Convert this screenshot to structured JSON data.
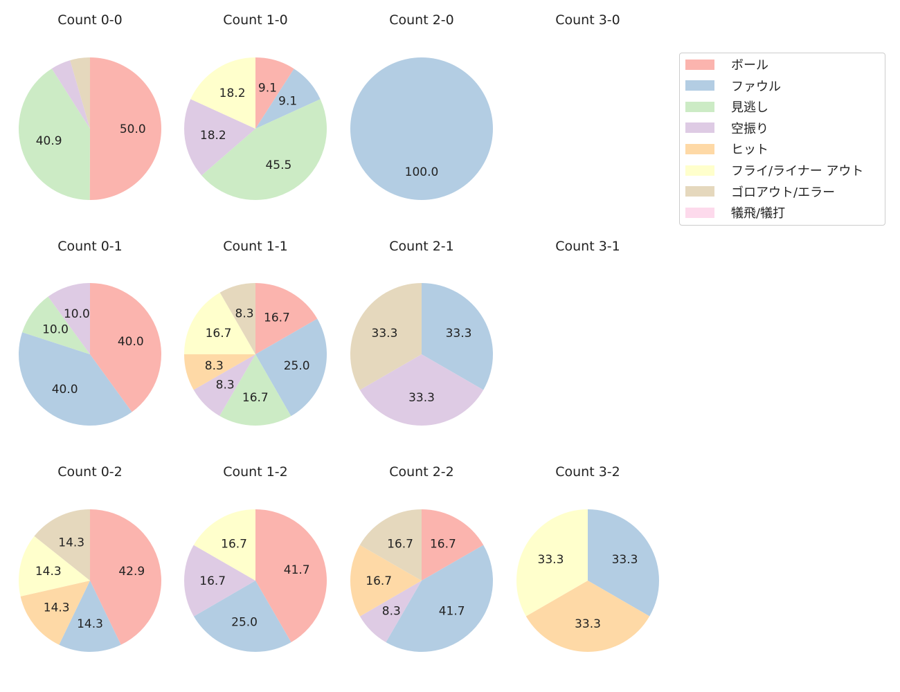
{
  "chart_data": {
    "type": "pie",
    "categories": [
      "ボール",
      "ファウル",
      "見逃し",
      "空振り",
      "ヒット",
      "フライ/ライナー アウト",
      "ゴロアウト/エラー",
      "犠飛/犠打"
    ],
    "colors": [
      "#fbb4ae",
      "#b3cde3",
      "#ccebc5",
      "#decbe4",
      "#fed9a6",
      "#ffffcc",
      "#e5d8bd",
      "#fddaec"
    ],
    "legend_position": "top-right",
    "start_angle_deg": 90,
    "direction": "clockwise",
    "charts": [
      {
        "title": "Count 0-0",
        "values": [
          50.0,
          0,
          40.9,
          4.5,
          0,
          0,
          4.5,
          0
        ]
      },
      {
        "title": "Count 1-0",
        "values": [
          9.1,
          9.1,
          45.5,
          18.2,
          0,
          18.2,
          0,
          0
        ]
      },
      {
        "title": "Count 2-0",
        "values": [
          0,
          100.0,
          0,
          0,
          0,
          0,
          0,
          0
        ]
      },
      {
        "title": "Count 3-0",
        "values": []
      },
      {
        "title": "Count 0-1",
        "values": [
          40.0,
          40.0,
          10.0,
          10.0,
          0,
          0,
          0,
          0
        ]
      },
      {
        "title": "Count 1-1",
        "values": [
          16.7,
          25.0,
          16.7,
          8.3,
          8.3,
          16.7,
          8.3,
          0
        ]
      },
      {
        "title": "Count 2-1",
        "values": [
          0,
          33.3,
          0,
          33.3,
          0,
          0,
          33.3,
          0
        ]
      },
      {
        "title": "Count 3-1",
        "values": []
      },
      {
        "title": "Count 0-2",
        "values": [
          42.9,
          14.3,
          0,
          0,
          14.3,
          14.3,
          14.3,
          0
        ]
      },
      {
        "title": "Count 1-2",
        "values": [
          41.7,
          25.0,
          0,
          16.7,
          0,
          16.7,
          0,
          0
        ]
      },
      {
        "title": "Count 2-2",
        "values": [
          16.7,
          41.7,
          0,
          8.3,
          16.7,
          0,
          16.7,
          0
        ]
      },
      {
        "title": "Count 3-2",
        "values": [
          0,
          33.3,
          0,
          0,
          33.3,
          33.3,
          0,
          0
        ]
      }
    ]
  }
}
